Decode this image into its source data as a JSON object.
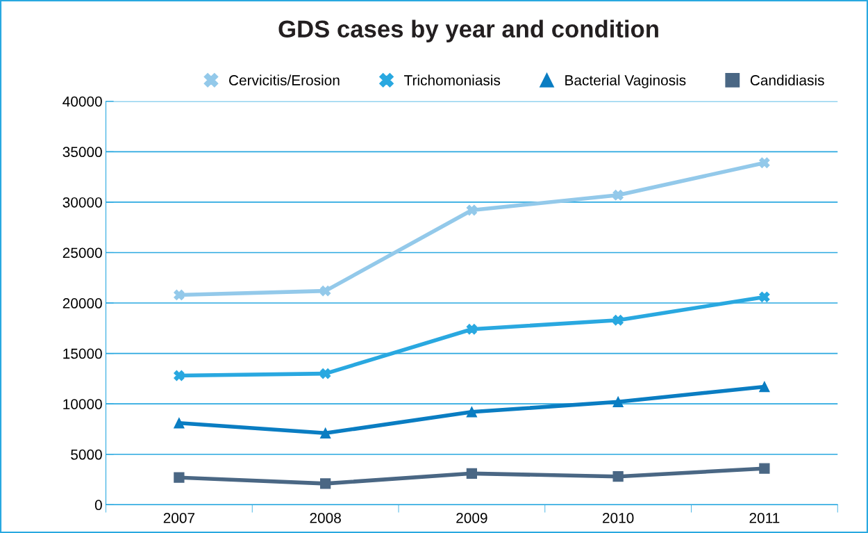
{
  "chart_data": {
    "type": "line",
    "title": "GDS cases by year and condition",
    "categories": [
      "2007",
      "2008",
      "2009",
      "2010",
      "2011"
    ],
    "series": [
      {
        "name": "Cervicitis/Erosion",
        "color": "#93c9ea",
        "marker": "cross",
        "values": [
          20800,
          21200,
          29200,
          30700,
          33900
        ]
      },
      {
        "name": "Trichomoniasis",
        "color": "#29a8e0",
        "marker": "cross",
        "values": [
          12800,
          13000,
          17400,
          18300,
          20600
        ]
      },
      {
        "name": "Bacterial Vaginosis",
        "color": "#0a7dc2",
        "marker": "triangle",
        "values": [
          8100,
          7100,
          9200,
          10200,
          11700
        ]
      },
      {
        "name": "Candidiasis",
        "color": "#4a6784",
        "marker": "square",
        "values": [
          2700,
          2100,
          3100,
          2800,
          3600
        ]
      }
    ],
    "ylim": [
      0,
      40000
    ],
    "yticks": [
      0,
      5000,
      10000,
      15000,
      20000,
      25000,
      30000,
      35000,
      40000
    ],
    "grid": "y",
    "legend": "top right"
  }
}
